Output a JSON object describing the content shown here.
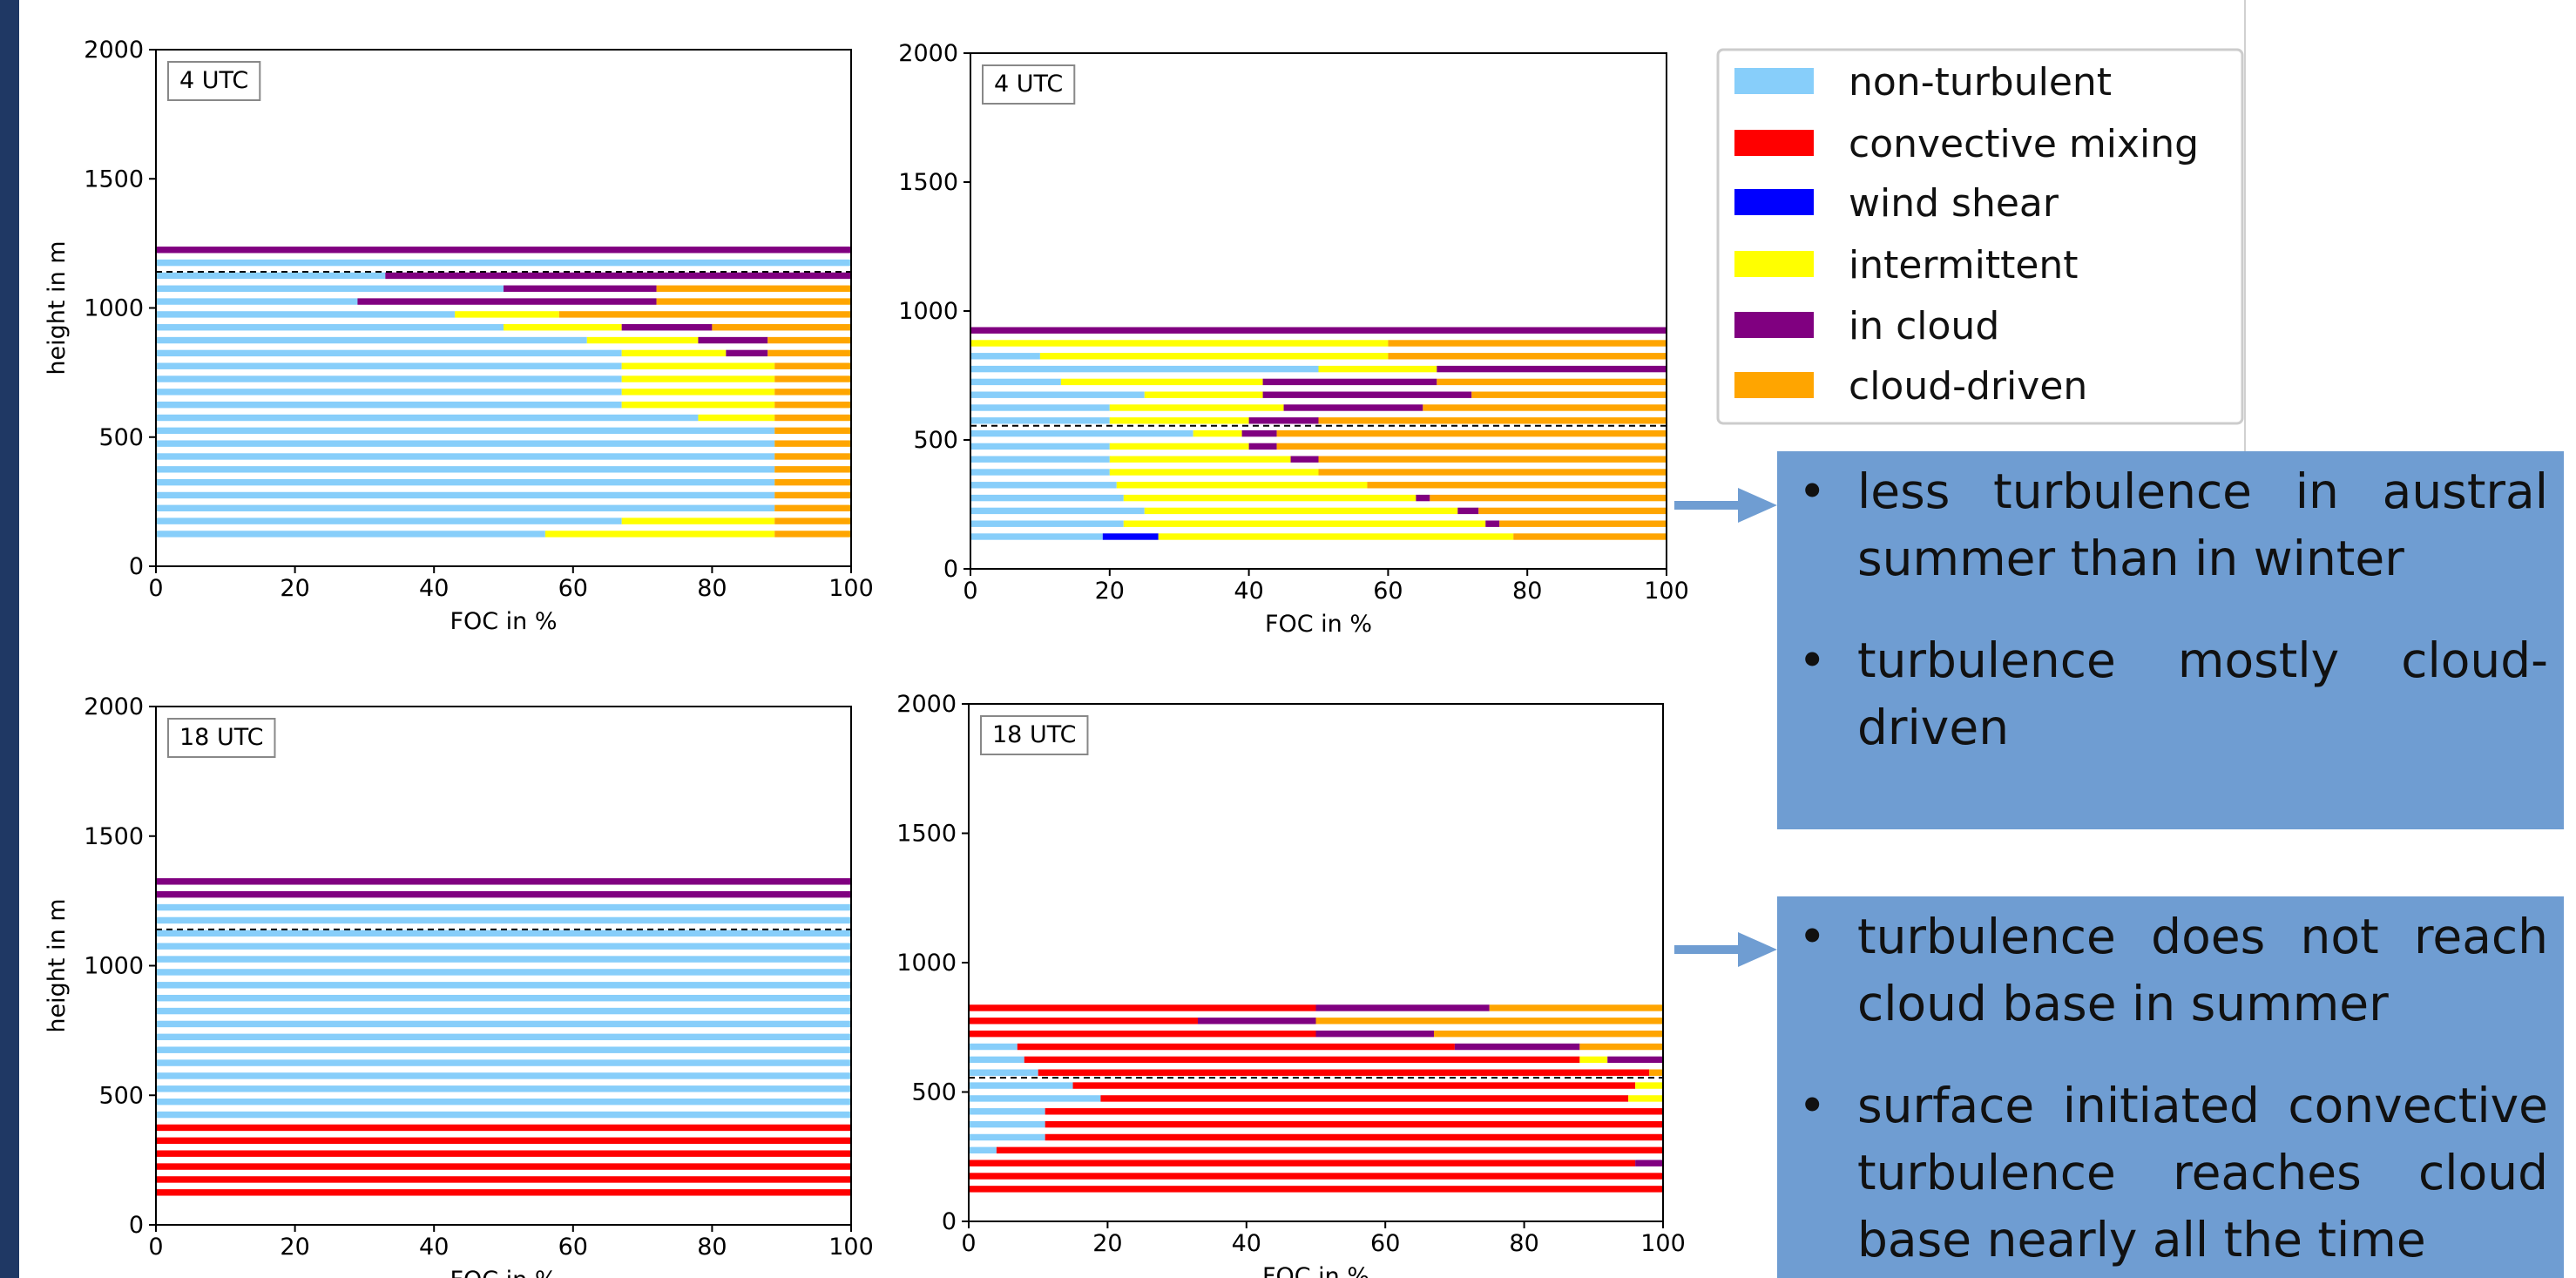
{
  "chart_data": [
    {
      "type": "bar",
      "orientation": "horizontal",
      "stacked": true,
      "title": "4 UTC",
      "xlabel": "FOC in %",
      "ylabel": "height in m",
      "categories": [
        125,
        175,
        225,
        275,
        325,
        375,
        425,
        475,
        525,
        575,
        625,
        675,
        725,
        775,
        825,
        875,
        925,
        975,
        1025,
        1075,
        1125,
        1175,
        1225
      ],
      "series": [
        {
          "name": "non-turbulent",
          "color": "#87cefa",
          "values": [
            56,
            67,
            89,
            89,
            89,
            89,
            89,
            89,
            89,
            78,
            67,
            67,
            67,
            67,
            67,
            62,
            50,
            43,
            29,
            50,
            33,
            100,
            0
          ]
        },
        {
          "name": "convective mixing",
          "color": "#ff0000",
          "values": [
            0,
            0,
            0,
            0,
            0,
            0,
            0,
            0,
            0,
            0,
            0,
            0,
            0,
            0,
            0,
            0,
            0,
            0,
            0,
            0,
            0,
            0,
            0
          ]
        },
        {
          "name": "wind shear",
          "color": "#0000ff",
          "values": [
            0,
            0,
            0,
            0,
            0,
            0,
            0,
            0,
            0,
            0,
            0,
            0,
            0,
            0,
            0,
            0,
            0,
            0,
            0,
            0,
            0,
            0,
            0
          ]
        },
        {
          "name": "intermittent",
          "color": "#ffff00",
          "values": [
            33,
            22,
            0,
            0,
            0,
            0,
            0,
            0,
            0,
            11,
            22,
            22,
            22,
            22,
            15,
            16,
            17,
            15,
            0,
            0,
            0,
            0,
            0
          ]
        },
        {
          "name": "in cloud",
          "color": "#800080",
          "values": [
            0,
            0,
            0,
            0,
            0,
            0,
            0,
            0,
            0,
            0,
            0,
            0,
            0,
            0,
            6,
            10,
            13,
            0,
            43,
            22,
            67,
            0,
            100
          ]
        },
        {
          "name": "cloud-driven",
          "color": "#ffa500",
          "values": [
            11,
            11,
            11,
            11,
            11,
            11,
            11,
            11,
            11,
            11,
            11,
            11,
            11,
            11,
            12,
            12,
            20,
            42,
            28,
            28,
            0,
            0,
            0
          ]
        }
      ],
      "xlim": [
        0,
        100
      ],
      "xticks": [
        0,
        20,
        40,
        60,
        80,
        100
      ],
      "ylim": [
        0,
        2000
      ],
      "yticks": [
        0,
        500,
        1000,
        1500,
        2000
      ],
      "reference_line": 1140
    },
    {
      "type": "bar",
      "orientation": "horizontal",
      "stacked": true,
      "title": "4 UTC",
      "xlabel": "FOC in %",
      "categories": [
        125,
        175,
        225,
        275,
        325,
        375,
        425,
        475,
        525,
        575,
        625,
        675,
        725,
        775,
        825,
        875,
        925
      ],
      "series": [
        {
          "name": "non-turbulent",
          "color": "#87cefa",
          "values": [
            19,
            22,
            25,
            22,
            21,
            20,
            20,
            20,
            32,
            20,
            20,
            25,
            13,
            50,
            10,
            0,
            0
          ]
        },
        {
          "name": "convective mixing",
          "color": "#ff0000",
          "values": [
            0,
            0,
            0,
            0,
            0,
            0,
            0,
            0,
            0,
            0,
            0,
            0,
            0,
            0,
            0,
            0,
            0
          ]
        },
        {
          "name": "wind shear",
          "color": "#0000ff",
          "values": [
            8,
            0,
            0,
            0,
            0,
            0,
            0,
            0,
            0,
            0,
            0,
            0,
            0,
            0,
            0,
            0,
            0
          ]
        },
        {
          "name": "intermittent",
          "color": "#ffff00",
          "values": [
            51,
            52,
            45,
            42,
            36,
            30,
            26,
            20,
            7,
            20,
            25,
            17,
            29,
            17,
            50,
            60,
            0
          ]
        },
        {
          "name": "in cloud",
          "color": "#800080",
          "values": [
            0,
            2,
            3,
            2,
            0,
            0,
            4,
            4,
            5,
            10,
            20,
            30,
            25,
            33,
            0,
            0,
            100
          ]
        },
        {
          "name": "cloud-driven",
          "color": "#ffa500",
          "values": [
            22,
            24,
            27,
            34,
            43,
            50,
            50,
            56,
            56,
            50,
            35,
            28,
            33,
            0,
            40,
            40,
            0
          ]
        }
      ],
      "xlim": [
        0,
        100
      ],
      "xticks": [
        0,
        20,
        40,
        60,
        80,
        100
      ],
      "ylim": [
        0,
        2000
      ],
      "yticks": [
        0,
        500,
        1000,
        1500,
        2000
      ],
      "reference_line": 555
    },
    {
      "type": "bar",
      "orientation": "horizontal",
      "stacked": true,
      "title": "18 UTC",
      "xlabel": "FOC in %",
      "ylabel": "height in m",
      "categories": [
        125,
        175,
        225,
        275,
        325,
        375,
        425,
        475,
        525,
        575,
        625,
        675,
        725,
        775,
        825,
        875,
        925,
        975,
        1025,
        1075,
        1125,
        1175,
        1225,
        1275,
        1325
      ],
      "series": [
        {
          "name": "non-turbulent",
          "color": "#87cefa",
          "values": [
            0,
            0,
            0,
            0,
            0,
            0,
            100,
            100,
            100,
            100,
            100,
            100,
            100,
            100,
            100,
            100,
            100,
            100,
            100,
            100,
            100,
            100,
            100,
            0,
            0
          ]
        },
        {
          "name": "convective mixing",
          "color": "#ff0000",
          "values": [
            100,
            100,
            100,
            100,
            100,
            100,
            0,
            0,
            0,
            0,
            0,
            0,
            0,
            0,
            0,
            0,
            0,
            0,
            0,
            0,
            0,
            0,
            0,
            0,
            0
          ]
        },
        {
          "name": "wind shear",
          "color": "#0000ff",
          "values": [
            0,
            0,
            0,
            0,
            0,
            0,
            0,
            0,
            0,
            0,
            0,
            0,
            0,
            0,
            0,
            0,
            0,
            0,
            0,
            0,
            0,
            0,
            0,
            0,
            0
          ]
        },
        {
          "name": "intermittent",
          "color": "#ffff00",
          "values": [
            0,
            0,
            0,
            0,
            0,
            0,
            0,
            0,
            0,
            0,
            0,
            0,
            0,
            0,
            0,
            0,
            0,
            0,
            0,
            0,
            0,
            0,
            0,
            0,
            0
          ]
        },
        {
          "name": "in cloud",
          "color": "#800080",
          "values": [
            0,
            0,
            0,
            0,
            0,
            0,
            0,
            0,
            0,
            0,
            0,
            0,
            0,
            0,
            0,
            0,
            0,
            0,
            0,
            0,
            0,
            0,
            0,
            100,
            100
          ]
        },
        {
          "name": "cloud-driven",
          "color": "#ffa500",
          "values": [
            0,
            0,
            0,
            0,
            0,
            0,
            0,
            0,
            0,
            0,
            0,
            0,
            0,
            0,
            0,
            0,
            0,
            0,
            0,
            0,
            0,
            0,
            0,
            0,
            0
          ]
        }
      ],
      "xlim": [
        0,
        100
      ],
      "xticks": [
        0,
        20,
        40,
        60,
        80,
        100
      ],
      "ylim": [
        0,
        2000
      ],
      "yticks": [
        0,
        500,
        1000,
        1500,
        2000
      ],
      "reference_line": 1140
    },
    {
      "type": "bar",
      "orientation": "horizontal",
      "stacked": true,
      "title": "18 UTC",
      "xlabel": "FOC in %",
      "categories": [
        125,
        175,
        225,
        275,
        325,
        375,
        425,
        475,
        525,
        575,
        625,
        675,
        725,
        775,
        825
      ],
      "series": [
        {
          "name": "non-turbulent",
          "color": "#87cefa",
          "values": [
            0,
            0,
            0,
            4,
            11,
            11,
            11,
            19,
            15,
            10,
            8,
            7,
            0,
            0,
            0
          ]
        },
        {
          "name": "convective mixing",
          "color": "#ff0000",
          "values": [
            100,
            100,
            96,
            96,
            89,
            89,
            89,
            76,
            81,
            88,
            80,
            63,
            50,
            33,
            50
          ]
        },
        {
          "name": "wind shear",
          "color": "#0000ff",
          "values": [
            0,
            0,
            0,
            0,
            0,
            0,
            0,
            0,
            0,
            0,
            0,
            0,
            0,
            0,
            0
          ]
        },
        {
          "name": "intermittent",
          "color": "#ffff00",
          "values": [
            0,
            0,
            0,
            0,
            0,
            0,
            0,
            5,
            4,
            0,
            4,
            0,
            0,
            0,
            0
          ]
        },
        {
          "name": "in cloud",
          "color": "#800080",
          "values": [
            0,
            0,
            4,
            0,
            0,
            0,
            0,
            0,
            0,
            0,
            8,
            18,
            17,
            17,
            25
          ]
        },
        {
          "name": "cloud-driven",
          "color": "#ffa500",
          "values": [
            0,
            0,
            0,
            0,
            0,
            0,
            0,
            0,
            0,
            2,
            0,
            12,
            33,
            50,
            25
          ]
        }
      ],
      "xlim": [
        0,
        100
      ],
      "xticks": [
        0,
        20,
        40,
        60,
        80,
        100
      ],
      "ylim": [
        0,
        2000
      ],
      "yticks": [
        0,
        500,
        1000,
        1500,
        2000
      ],
      "reference_line": 555
    }
  ],
  "text_boxes": [
    {
      "bullets": [
        "less turbulence in austral summer than in winter",
        "turbulence mostly cloud-driven"
      ]
    },
    {
      "bullets": [
        "turbulence does not reach cloud base in summer",
        "surface initiated convective turbulence reaches cloud base nearly all the time"
      ]
    }
  ]
}
